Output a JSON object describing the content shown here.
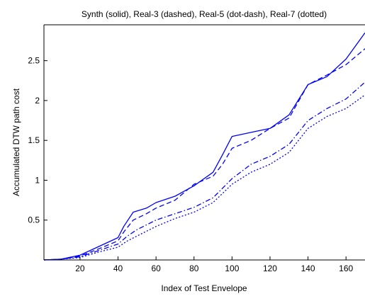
{
  "chart_data": {
    "type": "line",
    "title": "Synth (solid), Real-3 (dashed), Real-5 (dot-dash), Real-7 (dotted)",
    "xlabel": "Index of Test Envelope",
    "ylabel": "Accumulated DTW path cost",
    "xlim": [
      1,
      170
    ],
    "ylim": [
      0,
      2.95
    ],
    "xticks": [
      20,
      40,
      60,
      80,
      100,
      120,
      140,
      160
    ],
    "yticks": [
      0.5,
      1,
      1.5,
      2,
      2.5
    ],
    "grid": false,
    "line_color": "#0000ff",
    "series": [
      {
        "name": "Synth",
        "style": "solid",
        "x": [
          1,
          10,
          20,
          30,
          40,
          43,
          48,
          55,
          60,
          70,
          80,
          90,
          95,
          100,
          110,
          120,
          130,
          140,
          150,
          160,
          170
        ],
        "y": [
          0,
          0.01,
          0.06,
          0.17,
          0.28,
          0.42,
          0.6,
          0.65,
          0.72,
          0.8,
          0.93,
          1.1,
          1.32,
          1.55,
          1.6,
          1.65,
          1.82,
          2.2,
          2.3,
          2.52,
          2.85
        ]
      },
      {
        "name": "Real-3",
        "style": "dashed",
        "x": [
          1,
          10,
          20,
          30,
          40,
          43,
          48,
          55,
          60,
          70,
          80,
          90,
          95,
          100,
          110,
          120,
          130,
          140,
          150,
          160,
          170
        ],
        "y": [
          0,
          0.01,
          0.05,
          0.14,
          0.24,
          0.35,
          0.5,
          0.58,
          0.65,
          0.75,
          0.95,
          1.05,
          1.2,
          1.4,
          1.5,
          1.65,
          1.78,
          2.2,
          2.32,
          2.45,
          2.65
        ]
      },
      {
        "name": "Real-5",
        "style": "dot-dash",
        "x": [
          1,
          10,
          20,
          30,
          40,
          45,
          50,
          60,
          70,
          80,
          90,
          100,
          110,
          120,
          130,
          140,
          150,
          160,
          170
        ],
        "y": [
          0,
          0.01,
          0.04,
          0.12,
          0.2,
          0.3,
          0.38,
          0.5,
          0.58,
          0.66,
          0.78,
          1.02,
          1.2,
          1.3,
          1.45,
          1.75,
          1.9,
          2.02,
          2.23
        ]
      },
      {
        "name": "Real-7",
        "style": "dotted",
        "x": [
          1,
          10,
          20,
          30,
          40,
          45,
          50,
          60,
          70,
          80,
          90,
          100,
          110,
          120,
          130,
          140,
          150,
          160,
          170
        ],
        "y": [
          0,
          0.01,
          0.03,
          0.1,
          0.16,
          0.24,
          0.3,
          0.42,
          0.52,
          0.6,
          0.72,
          0.95,
          1.1,
          1.2,
          1.35,
          1.65,
          1.8,
          1.9,
          2.07
        ]
      }
    ]
  }
}
